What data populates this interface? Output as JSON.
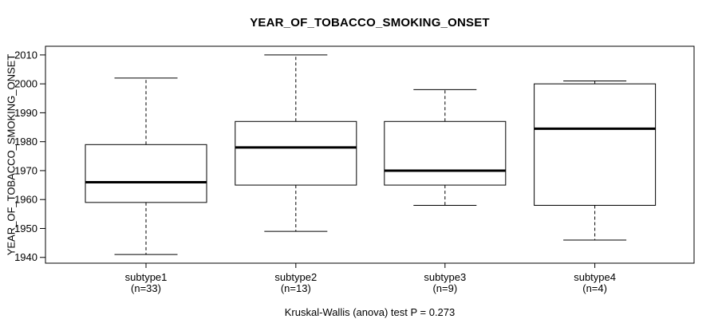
{
  "chart": {
    "title": "YEAR_OF_TOBACCO_SMOKING_ONSET",
    "footer": "Kruskal-Wallis (anova) test P = 0.273"
  },
  "chart_data": {
    "type": "boxplot",
    "title": "YEAR_OF_TOBACCO_SMOKING_ONSET",
    "xlabel": "",
    "ylabel": "YEAR_OF_TOBACCO_SMOKING_ONSET",
    "ylim": [
      1938,
      2013
    ],
    "yticks": [
      1940,
      1950,
      1960,
      1970,
      1980,
      1990,
      2000,
      2010
    ],
    "grid": false,
    "categories": [
      "subtype1",
      "subtype2",
      "subtype3",
      "subtype4"
    ],
    "series": [
      {
        "name": "subtype1",
        "n": 33,
        "whisker_low": 1941,
        "q1": 1959,
        "median": 1966,
        "q3": 1979,
        "whisker_high": 2002,
        "outliers": []
      },
      {
        "name": "subtype2",
        "n": 13,
        "whisker_low": 1949,
        "q1": 1965,
        "median": 1978,
        "q3": 1987,
        "whisker_high": 2010,
        "outliers": []
      },
      {
        "name": "subtype3",
        "n": 9,
        "whisker_low": 1958,
        "q1": 1965,
        "median": 1970,
        "q3": 1987,
        "whisker_high": 1998,
        "outliers": []
      },
      {
        "name": "subtype4",
        "n": 4,
        "whisker_low": 1946,
        "q1": 1958,
        "median": 1984.5,
        "q3": 2000,
        "whisker_high": 2001,
        "outliers": []
      }
    ],
    "x_tick_label_format": "{name}\n(n={n})",
    "annotation": "Kruskal-Wallis (anova) test P = 0.273",
    "legend": null
  },
  "colors": {
    "background": "#ffffff",
    "frame": "#000000",
    "box_border": "#000000",
    "box_fill": "#ffffff",
    "median_line": "#000000",
    "whisker": "#000000",
    "text": "#000000"
  }
}
